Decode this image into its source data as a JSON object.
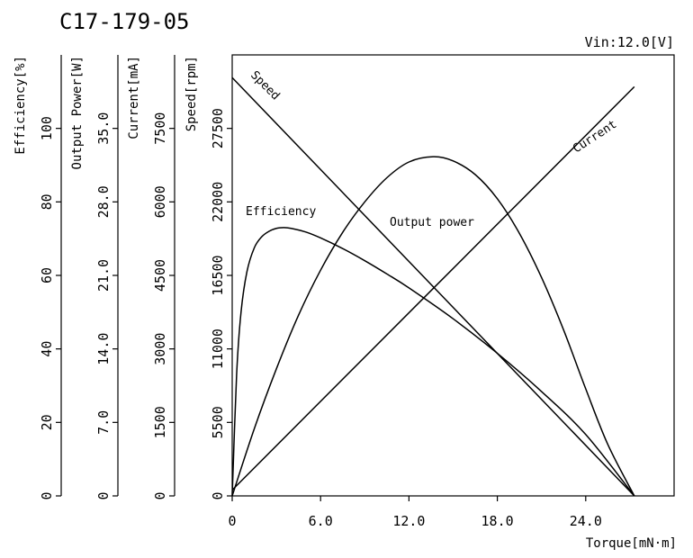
{
  "chart_data": {
    "type": "line",
    "title": "C17-179-05",
    "condition": "Vin:12.0[V]",
    "xlabel": "Torque[mN·m]",
    "xlim": [
      0,
      30
    ],
    "x_ticks": [
      0,
      6,
      12,
      18,
      24
    ],
    "x_tick_labels": [
      "0",
      "6.0",
      "12.0",
      "18.0",
      "24.0"
    ],
    "axes": [
      {
        "id": "efficiency",
        "label": "Efficiency[%]",
        "ylim": [
          0,
          120
        ],
        "ticks": [
          0,
          20,
          40,
          60,
          80,
          100
        ],
        "tick_labels": [
          "0",
          "20",
          "40",
          "60",
          "80",
          "100"
        ]
      },
      {
        "id": "power",
        "label": "Output Power[W]",
        "ylim": [
          0,
          42
        ],
        "ticks": [
          0,
          7,
          14,
          21,
          28,
          35
        ],
        "tick_labels": [
          "0",
          "7.0",
          "14.0",
          "21.0",
          "28.0",
          "35.0"
        ]
      },
      {
        "id": "current",
        "label": "Current[mA]",
        "ylim": [
          0,
          9000
        ],
        "ticks": [
          0,
          1500,
          3000,
          4500,
          6000,
          7500
        ],
        "tick_labels": [
          "0",
          "1500",
          "3000",
          "4500",
          "6000",
          "7500"
        ]
      },
      {
        "id": "speed",
        "label": "Speed[rpm]",
        "ylim": [
          0,
          33000
        ],
        "ticks": [
          0,
          5500,
          11000,
          16500,
          22000,
          27500
        ],
        "tick_labels": [
          "0",
          "5500",
          "11000",
          "16500",
          "22000",
          "27500"
        ]
      }
    ],
    "series": [
      {
        "name": "Speed",
        "axis": "speed",
        "x": [
          0,
          27.3
        ],
        "y": [
          31300,
          0
        ]
      },
      {
        "name": "Current",
        "axis": "current",
        "x": [
          0,
          27.3
        ],
        "y": [
          120,
          8350
        ]
      },
      {
        "name": "Output power",
        "axis": "power",
        "x": [
          0,
          1.5,
          3,
          4.5,
          6,
          7.5,
          9,
          10.5,
          12,
          13.65,
          15,
          16.5,
          18,
          19.5,
          21,
          22.5,
          24,
          25.5,
          27.3
        ],
        "y": [
          0,
          6.4,
          12.1,
          17.2,
          21.5,
          25.1,
          28.0,
          30.3,
          31.8,
          32.3,
          31.9,
          30.6,
          28.3,
          25.0,
          20.8,
          15.8,
          10.2,
          4.9,
          0
        ]
      },
      {
        "name": "Efficiency",
        "axis": "efficiency",
        "x": [
          0,
          0.3,
          0.6,
          1,
          1.5,
          2,
          2.5,
          3,
          3.5,
          4,
          5,
          6,
          7.5,
          9,
          10.5,
          12,
          15,
          18,
          21,
          24,
          27.3
        ],
        "y": [
          0,
          33,
          50,
          61,
          67.5,
          70.5,
          72,
          72.8,
          73,
          72.8,
          71.8,
          70.2,
          67.3,
          64.0,
          60.4,
          56.6,
          48.2,
          38.8,
          28.4,
          16.7,
          0
        ]
      }
    ],
    "annotations": [
      {
        "text": "Speed",
        "series": "Speed"
      },
      {
        "text": "Current",
        "series": "Current"
      },
      {
        "text": "Output power",
        "series": "Output power"
      },
      {
        "text": "Efficiency",
        "series": "Efficiency"
      }
    ]
  }
}
